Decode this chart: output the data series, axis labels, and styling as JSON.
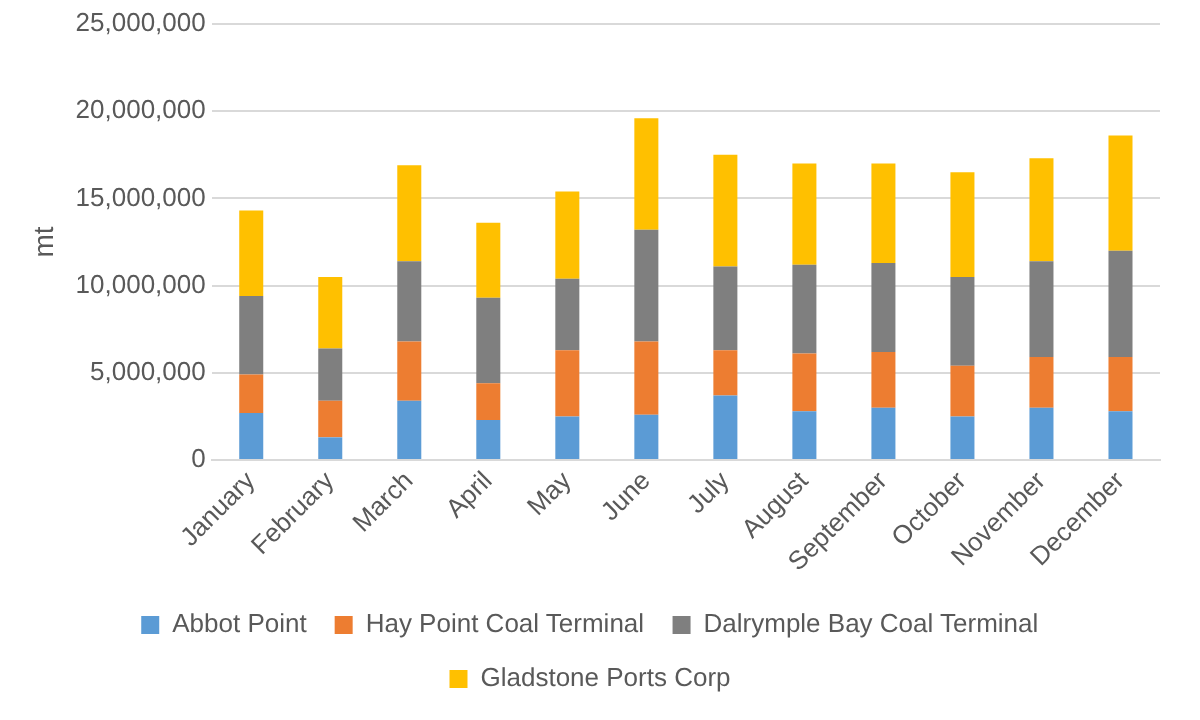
{
  "chart_data": {
    "type": "bar",
    "stacked": true,
    "ylabel": "mt",
    "categories": [
      "January",
      "February",
      "March",
      "April",
      "May",
      "June",
      "July",
      "August",
      "September",
      "October",
      "November",
      "December"
    ],
    "series": [
      {
        "name": "Abbot Point",
        "color": "#5b9bd5",
        "values": [
          2700000,
          1300000,
          3400000,
          2300000,
          2500000,
          2600000,
          3700000,
          2800000,
          3000000,
          2500000,
          3000000,
          2800000
        ]
      },
      {
        "name": "Hay Point Coal Terminal",
        "color": "#ed7d31",
        "values": [
          2200000,
          2100000,
          3400000,
          2100000,
          3800000,
          4200000,
          2600000,
          3300000,
          3200000,
          2900000,
          2900000,
          3100000
        ]
      },
      {
        "name": "Dalrymple Bay Coal Terminal",
        "color": "#7f7f7f",
        "values": [
          4500000,
          3000000,
          4600000,
          4900000,
          4100000,
          6400000,
          4800000,
          5100000,
          5100000,
          5100000,
          5500000,
          6100000
        ]
      },
      {
        "name": "Gladstone Ports Corp",
        "color": "#ffc000",
        "values": [
          4900000,
          4100000,
          5500000,
          4300000,
          5000000,
          6400000,
          6400000,
          5800000,
          5700000,
          6000000,
          5900000,
          6600000
        ]
      }
    ],
    "ylim": [
      0,
      25000000
    ],
    "yticks": [
      0,
      {
        "value": 5000000,
        "label": "5,000,000"
      },
      {
        "value": 10000000,
        "label": "10,000,000"
      },
      {
        "value": 15000000,
        "label": "15,000,000"
      },
      {
        "value": 20000000,
        "label": "20,000,000"
      },
      {
        "value": 25000000,
        "label": "25,000,000"
      }
    ],
    "grid": "y",
    "legend": "bottom"
  }
}
